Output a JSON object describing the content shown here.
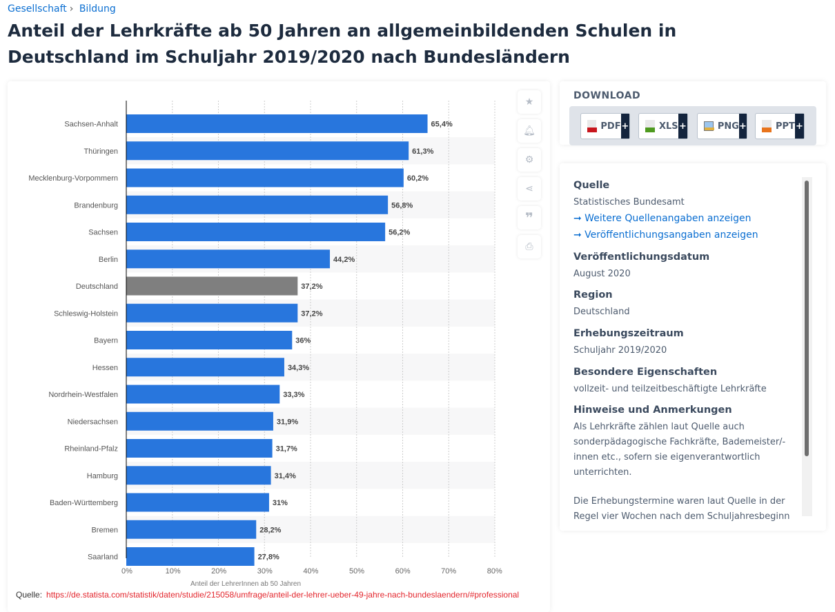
{
  "breadcrumb": [
    "Gesellschaft",
    "Bildung"
  ],
  "title": "Anteil der Lehrkräfte ab 50 Jahren an allgemeinbildenden Schulen in Deutschland im Schuljahr 2019/2020 nach Bundesländern",
  "chart_data": {
    "type": "bar",
    "orientation": "horizontal",
    "categories": [
      "Sachsen-Anhalt",
      "Thüringen",
      "Mecklenburg-Vorpommern",
      "Brandenburg",
      "Sachsen",
      "Berlin",
      "Deutschland",
      "Schleswig-Holstein",
      "Bayern",
      "Hessen",
      "Nordrhein-Westfalen",
      "Niedersachsen",
      "Rheinland-Pfalz",
      "Hamburg",
      "Baden-Württemberg",
      "Bremen",
      "Saarland"
    ],
    "values": [
      65.4,
      61.3,
      60.2,
      56.8,
      56.2,
      44.2,
      37.2,
      37.2,
      36,
      34.3,
      33.3,
      31.9,
      31.7,
      31.4,
      31,
      28.2,
      27.8
    ],
    "data_labels": [
      "65,4%",
      "61,3%",
      "60,2%",
      "56,8%",
      "56,2%",
      "44,2%",
      "37,2%",
      "37,2%",
      "36%",
      "34,3%",
      "33,3%",
      "31,9%",
      "31,7%",
      "31,4%",
      "31%",
      "28,2%",
      "27,8%"
    ],
    "xlabel": "Anteil der LehrerInnen ab 50 Jahren",
    "xlim": [
      0,
      80
    ],
    "xticks": [
      "0%",
      "10%",
      "20%",
      "30%",
      "40%",
      "50%",
      "60%",
      "70%",
      "80%"
    ],
    "grid": true,
    "colors": {
      "bar": "#2876dd",
      "highlight": "#7f7f7f"
    },
    "highlight_category": "Deutschland"
  },
  "side_icons": [
    "star-icon",
    "bell-icon",
    "gear-icon",
    "share-icon",
    "quote-icon",
    "print-icon"
  ],
  "source_line": {
    "label": "Quelle:",
    "url": "https://de.statista.com/statistik/daten/studie/215058/umfrage/anteil-der-lehrer-ueber-49-jahre-nach-bundeslaendern/#professional"
  },
  "download": {
    "title": "DOWNLOAD",
    "buttons": [
      {
        "label": "PDF",
        "color": "#c8161d"
      },
      {
        "label": "XLS",
        "color": "#4e9a1f"
      },
      {
        "label": "PNG",
        "color": "#3a7bc8"
      },
      {
        "label": "PPT",
        "color": "#e8741c"
      }
    ],
    "plus": "+"
  },
  "info": {
    "quelle_title": "Quelle",
    "quelle_value": "Statistisches Bundesamt",
    "link1": "➞ Weitere Quellenangaben anzeigen",
    "link2": "➞ Veröffentlichungsangaben anzeigen",
    "date_title": "Veröffentlichungsdatum",
    "date_value": "August 2020",
    "region_title": "Region",
    "region_value": "Deutschland",
    "period_title": "Erhebungszeitraum",
    "period_value": "Schuljahr 2019/2020",
    "props_title": "Besondere Eigenschaften",
    "props_value": "vollzeit- und teilzeitbeschäftigte Lehrkräfte",
    "notes_title": "Hinweise und Anmerkungen",
    "notes_value1": "Als Lehrkräfte zählen laut Quelle auch sonderpädagogische Fachkräfte, Bademeister/-innen etc., sofern sie eigenverantwortlich unterrichten.",
    "notes_value2": "Die Erhebungstermine waren laut Quelle in der Regel vier Wochen nach dem Schuljahresbeginn"
  }
}
